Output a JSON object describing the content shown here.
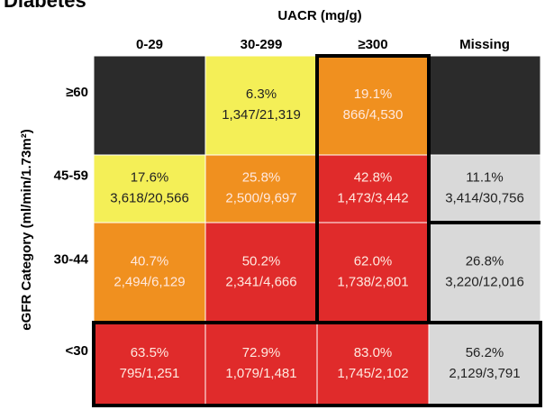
{
  "title": "Diabetes",
  "x_axis_title": "UACR (mg/g)",
  "y_axis_title": "eGFR Category (ml/min/1.73m²)",
  "columns": [
    "0-29",
    "30-299",
    "≥300",
    "Missing"
  ],
  "rows": [
    {
      "label": "≥60",
      "cells": [
        {
          "color": "#2b2b2b"
        },
        {
          "color": "#f4ef57",
          "pct": "6.3%",
          "count": "1,347/21,319"
        },
        {
          "color": "#f0901f",
          "pct": "19.1%",
          "count": "866/4,530"
        },
        {
          "color": "#2b2b2b"
        }
      ]
    },
    {
      "label": "45-59",
      "cells": [
        {
          "color": "#f4ef57",
          "pct": "17.6%",
          "count": "3,618/20,566"
        },
        {
          "color": "#f0901f",
          "pct": "25.8%",
          "count": "2,500/9,697"
        },
        {
          "color": "#e02b2b",
          "pct": "42.8%",
          "count": "1,473/3,442"
        },
        {
          "color": "#d9d9d9",
          "pct": "11.1%",
          "count": "3,414/30,756"
        }
      ]
    },
    {
      "label": "30-44",
      "cells": [
        {
          "color": "#f0901f",
          "pct": "40.7%",
          "count": "2,494/6,129"
        },
        {
          "color": "#e02b2b",
          "pct": "50.2%",
          "count": "2,341/4,666"
        },
        {
          "color": "#e02b2b",
          "pct": "62.0%",
          "count": "1,738/2,801"
        },
        {
          "color": "#d9d9d9",
          "pct": "26.8%",
          "count": "3,220/12,016"
        }
      ]
    },
    {
      "label": "<30",
      "cells": [
        {
          "color": "#e02b2b",
          "pct": "63.5%",
          "count": "795/1,251"
        },
        {
          "color": "#e02b2b",
          "pct": "72.9%",
          "count": "1,079/1,481"
        },
        {
          "color": "#e02b2b",
          "pct": "83.0%",
          "count": "1,745/2,102"
        },
        {
          "color": "#d9d9d9",
          "pct": "56.2%",
          "count": "2,129/3,791"
        }
      ]
    }
  ]
}
